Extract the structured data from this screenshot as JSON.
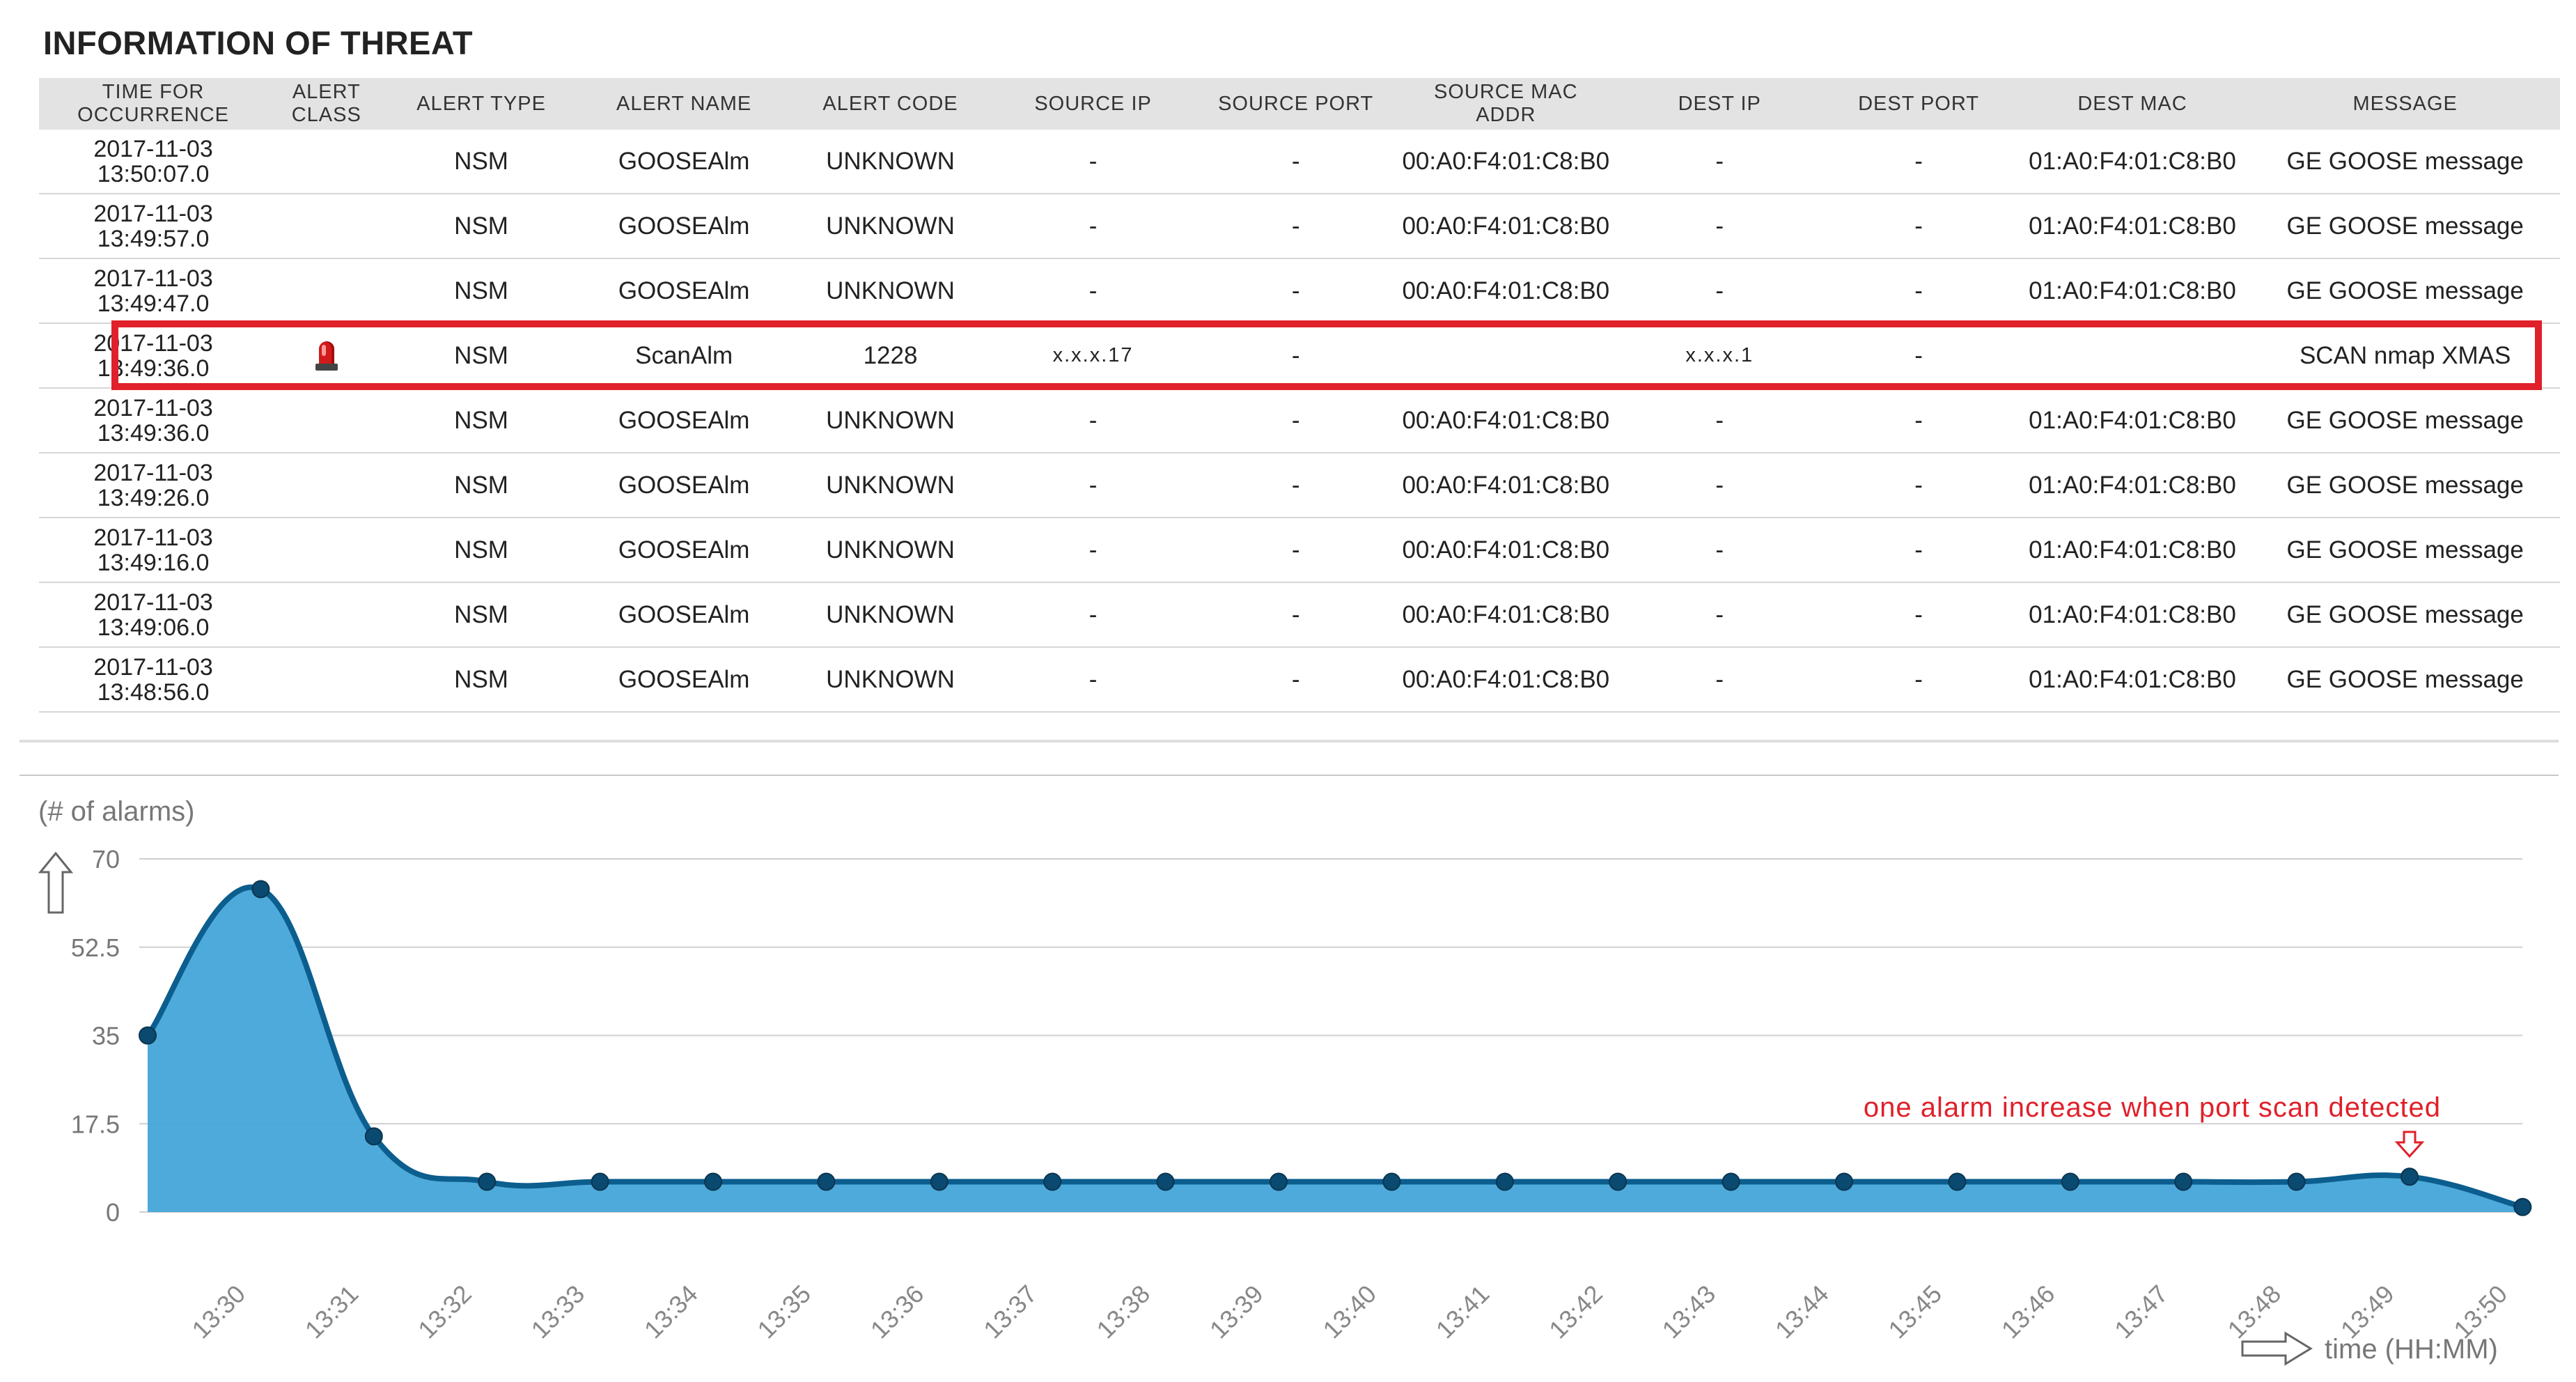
{
  "section_title": "INFORMATION OF THREAT",
  "table": {
    "headers": [
      "TIME FOR\nOCCURRENCE",
      "ALERT\nCLASS",
      "ALERT TYPE",
      "ALERT NAME",
      "ALERT CODE",
      "SOURCE IP",
      "SOURCE PORT",
      "SOURCE MAC\nADDR",
      "DEST IP",
      "DEST PORT",
      "DEST MAC",
      "MESSAGE"
    ],
    "rows": [
      {
        "time": "2017-11-03\n13:50:07.0",
        "alert_class": "",
        "alert_type": "NSM",
        "alert_name": "GOOSEAlm",
        "alert_code": "UNKNOWN",
        "source_ip": "-",
        "source_port": "-",
        "source_mac": "00:A0:F4:01:C8:B0",
        "dest_ip": "-",
        "dest_port": "-",
        "dest_mac": "01:A0:F4:01:C8:B0",
        "message": "GE GOOSE message"
      },
      {
        "time": "2017-11-03\n13:49:57.0",
        "alert_class": "",
        "alert_type": "NSM",
        "alert_name": "GOOSEAlm",
        "alert_code": "UNKNOWN",
        "source_ip": "-",
        "source_port": "-",
        "source_mac": "00:A0:F4:01:C8:B0",
        "dest_ip": "-",
        "dest_port": "-",
        "dest_mac": "01:A0:F4:01:C8:B0",
        "message": "GE GOOSE message"
      },
      {
        "time": "2017-11-03\n13:49:47.0",
        "alert_class": "",
        "alert_type": "NSM",
        "alert_name": "GOOSEAlm",
        "alert_code": "UNKNOWN",
        "source_ip": "-",
        "source_port": "-",
        "source_mac": "00:A0:F4:01:C8:B0",
        "dest_ip": "-",
        "dest_port": "-",
        "dest_mac": "01:A0:F4:01:C8:B0",
        "message": "GE GOOSE message"
      },
      {
        "time": "2017-11-03\n13:49:36.0",
        "alert_class": "siren-icon",
        "alert_type": "NSM",
        "alert_name": "ScanAlm",
        "alert_code": "1228",
        "source_ip": "x.x.x.17",
        "source_port": "-",
        "source_mac": "",
        "dest_ip": "x.x.x.1",
        "dest_port": "-",
        "dest_mac": "",
        "message": "SCAN nmap XMAS",
        "highlighted": true
      },
      {
        "time": "2017-11-03\n13:49:36.0",
        "alert_class": "",
        "alert_type": "NSM",
        "alert_name": "GOOSEAlm",
        "alert_code": "UNKNOWN",
        "source_ip": "-",
        "source_port": "-",
        "source_mac": "00:A0:F4:01:C8:B0",
        "dest_ip": "-",
        "dest_port": "-",
        "dest_mac": "01:A0:F4:01:C8:B0",
        "message": "GE GOOSE message"
      },
      {
        "time": "2017-11-03\n13:49:26.0",
        "alert_class": "",
        "alert_type": "NSM",
        "alert_name": "GOOSEAlm",
        "alert_code": "UNKNOWN",
        "source_ip": "-",
        "source_port": "-",
        "source_mac": "00:A0:F4:01:C8:B0",
        "dest_ip": "-",
        "dest_port": "-",
        "dest_mac": "01:A0:F4:01:C8:B0",
        "message": "GE GOOSE message"
      },
      {
        "time": "2017-11-03\n13:49:16.0",
        "alert_class": "",
        "alert_type": "NSM",
        "alert_name": "GOOSEAlm",
        "alert_code": "UNKNOWN",
        "source_ip": "-",
        "source_port": "-",
        "source_mac": "00:A0:F4:01:C8:B0",
        "dest_ip": "-",
        "dest_port": "-",
        "dest_mac": "01:A0:F4:01:C8:B0",
        "message": "GE GOOSE message"
      },
      {
        "time": "2017-11-03\n13:49:06.0",
        "alert_class": "",
        "alert_type": "NSM",
        "alert_name": "GOOSEAlm",
        "alert_code": "UNKNOWN",
        "source_ip": "-",
        "source_port": "-",
        "source_mac": "00:A0:F4:01:C8:B0",
        "dest_ip": "-",
        "dest_port": "-",
        "dest_mac": "01:A0:F4:01:C8:B0",
        "message": "GE GOOSE message"
      },
      {
        "time": "2017-11-03\n13:48:56.0",
        "alert_class": "",
        "alert_type": "NSM",
        "alert_name": "GOOSEAlm",
        "alert_code": "UNKNOWN",
        "source_ip": "-",
        "source_port": "-",
        "source_mac": "00:A0:F4:01:C8:B0",
        "dest_ip": "-",
        "dest_port": "-",
        "dest_mac": "01:A0:F4:01:C8:B0",
        "message": "GE GOOSE message"
      }
    ],
    "highlight_color": "#e0202a"
  },
  "chart_data": {
    "type": "area",
    "title": "",
    "ylabel": "(# of alarms)",
    "xlabel": "time (HH:MM)",
    "categories": [
      "13:30",
      "13:31",
      "13:32",
      "13:33",
      "13:34",
      "13:35",
      "13:36",
      "13:37",
      "13:38",
      "13:39",
      "13:40",
      "13:41",
      "13:42",
      "13:43",
      "13:44",
      "13:45",
      "13:46",
      "13:47",
      "13:48",
      "13:49",
      "13:50"
    ],
    "x": [
      "13:29",
      "13:30",
      "13:31",
      "13:32",
      "13:33",
      "13:34",
      "13:35",
      "13:36",
      "13:37",
      "13:38",
      "13:39",
      "13:40",
      "13:41",
      "13:42",
      "13:43",
      "13:44",
      "13:45",
      "13:46",
      "13:47",
      "13:48",
      "13:49",
      "13:50"
    ],
    "values": [
      35,
      64,
      15,
      6,
      6,
      6,
      6,
      6,
      6,
      6,
      6,
      6,
      6,
      6,
      6,
      6,
      6,
      6,
      6,
      6,
      7,
      1
    ],
    "yticks": [
      0,
      17.5,
      35,
      52.5,
      70
    ],
    "ylim": [
      0,
      70
    ],
    "grid": true,
    "annotation": "one alarm increase when port scan detected",
    "annotation_at": "13:49",
    "fill_color": "#45a5d8",
    "line_color": "#0b5e8e",
    "point_color": "#0b4a70",
    "annotation_color": "#e0202a"
  }
}
